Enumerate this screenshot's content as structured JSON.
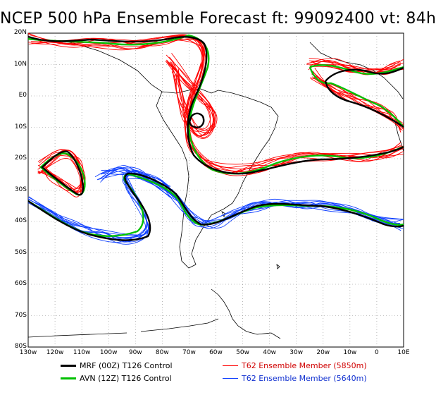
{
  "title": "NCEP 500 hPa Ensemble Forecast   ft: 99092400  vt: 84h",
  "lat_labels": [
    "20N",
    "10N",
    "E0",
    "10S",
    "20S",
    "30S",
    "40S",
    "50S",
    "60S",
    "70S",
    "80S"
  ],
  "lon_labels": [
    "130w",
    "120w",
    "110w",
    "100w",
    "90w",
    "80w",
    "70w",
    "60w",
    "50w",
    "40w",
    "30w",
    "20w",
    "10w",
    "0",
    "10E"
  ],
  "legend": [
    {
      "label": "MRF (00Z) T126 Control",
      "color": "#000000",
      "width": 3
    },
    {
      "label": "AVN (12Z) T126 Control",
      "color": "#00c000",
      "width": 3
    },
    {
      "label": "T62 Ensemble Member (5850m)",
      "color": "#ff0000",
      "width": 1
    },
    {
      "label": "T62 Ensemble Member (5640m)",
      "color": "#1040ff",
      "width": 1
    }
  ],
  "colors": {
    "mrf": "#000000",
    "avn": "#00c000",
    "red": "#ff0000",
    "blue": "#1040ff"
  }
}
